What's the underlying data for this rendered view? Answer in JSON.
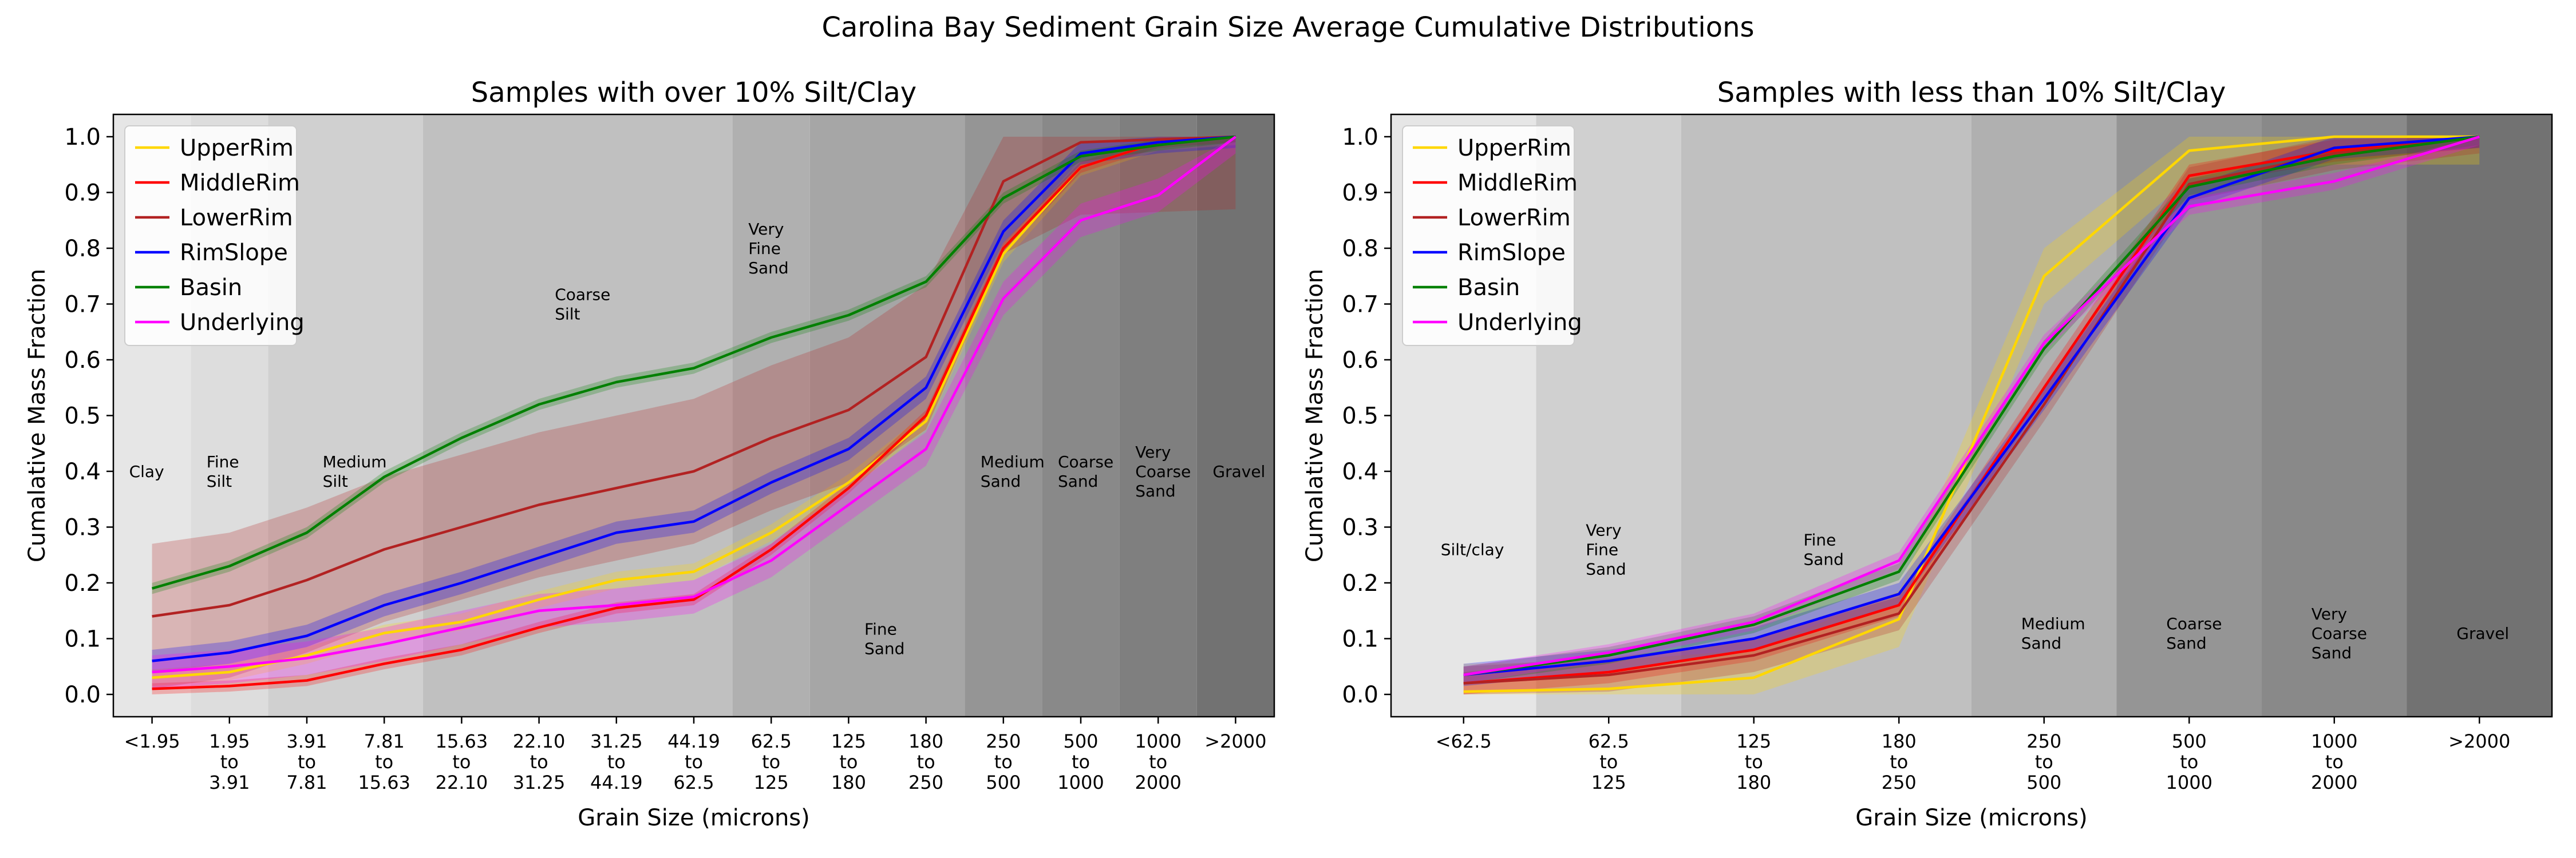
{
  "suptitle": "Carolina Bay Sediment Grain Size Average Cumulative Distributions",
  "colors": {
    "UpperRim": "#ffd700",
    "MiddleRim": "#ff0000",
    "LowerRim": "#b22222",
    "RimSlope": "#0000ff",
    "Basin": "#008000",
    "Underlying": "#ff00ff"
  },
  "chart_data": [
    {
      "type": "line",
      "title": "Samples with over 10% Silt/Clay",
      "xlabel": "Grain Size (microns)",
      "ylabel": "Cumalative Mass Fraction",
      "ylim": [
        -0.04,
        1.04
      ],
      "yticks": [
        "0.0",
        "0.1",
        "0.2",
        "0.3",
        "0.4",
        "0.5",
        "0.6",
        "0.7",
        "0.8",
        "0.9",
        "1.0"
      ],
      "categories": [
        "<1.95",
        "1.95\nto\n3.91",
        "3.91\nto\n7.81",
        "7.81\nto\n15.63",
        "15.63\nto\n22.10",
        "22.10\nto\n31.25",
        "31.25\nto\n44.19",
        "44.19\nto\n62.5",
        "62.5\nto\n125",
        "125\nto\n180",
        "180\nto\n250",
        "250\nto\n500",
        "500\nto\n1000",
        "1000\nto\n2000",
        ">2000"
      ],
      "legend_position": "upper-left",
      "bands": [
        {
          "label": "Clay",
          "from": -0.5,
          "to": 0.5,
          "shade": "#e6e6e6",
          "label_y": 0.4
        },
        {
          "label": "Fine\nSilt",
          "from": 0.5,
          "to": 1.5,
          "shade": "#dddddd",
          "label_y": 0.4
        },
        {
          "label": "Medium\nSilt",
          "from": 1.5,
          "to": 3.5,
          "shade": "#d0d0d0",
          "label_y": 0.4
        },
        {
          "label": "Coarse\nSilt",
          "from": 3.5,
          "to": 7.5,
          "shade": "#c0c0c0",
          "label_y": 0.7
        },
        {
          "label": "Very\nFine\nSand",
          "from": 7.5,
          "to": 8.5,
          "shade": "#b0b0b0",
          "label_y": 0.8
        },
        {
          "label": "Fine\nSand",
          "from": 8.5,
          "to": 10.5,
          "shade": "#a6a6a6",
          "label_y": 0.1
        },
        {
          "label": "Medium\nSand",
          "from": 10.5,
          "to": 11.5,
          "shade": "#959595",
          "label_y": 0.4
        },
        {
          "label": "Coarse\nSand",
          "from": 11.5,
          "to": 12.5,
          "shade": "#898989",
          "label_y": 0.4
        },
        {
          "label": "Very\nCoarse\nSand",
          "from": 12.5,
          "to": 13.5,
          "shade": "#7f7f7f",
          "label_y": 0.4
        },
        {
          "label": "Gravel",
          "from": 13.5,
          "to": 14.5,
          "shade": "#727272",
          "label_y": 0.4
        }
      ],
      "series": [
        {
          "name": "UpperRim",
          "values": [
            0.03,
            0.04,
            0.07,
            0.11,
            0.13,
            0.17,
            0.205,
            0.22,
            0.29,
            0.38,
            0.49,
            0.79,
            0.945,
            0.99,
            1.0
          ],
          "band": 0.015
        },
        {
          "name": "MiddleRim",
          "values": [
            0.01,
            0.015,
            0.025,
            0.055,
            0.08,
            0.12,
            0.155,
            0.17,
            0.26,
            0.37,
            0.5,
            0.8,
            0.945,
            0.99,
            1.0
          ],
          "band": 0.01
        },
        {
          "name": "LowerRim",
          "values": [
            0.14,
            0.16,
            0.205,
            0.26,
            0.3,
            0.34,
            0.37,
            0.4,
            0.46,
            0.51,
            0.605,
            0.92,
            0.99,
            0.995,
            1.0
          ],
          "band": 0.13
        },
        {
          "name": "RimSlope",
          "values": [
            0.06,
            0.075,
            0.105,
            0.16,
            0.2,
            0.245,
            0.29,
            0.31,
            0.38,
            0.44,
            0.55,
            0.83,
            0.97,
            0.99,
            1.0
          ],
          "band": 0.02
        },
        {
          "name": "Basin",
          "values": [
            0.19,
            0.23,
            0.29,
            0.39,
            0.46,
            0.52,
            0.56,
            0.585,
            0.64,
            0.68,
            0.74,
            0.89,
            0.965,
            0.985,
            1.0
          ],
          "band": 0.01
        },
        {
          "name": "Underlying",
          "values": [
            0.04,
            0.05,
            0.065,
            0.09,
            0.12,
            0.15,
            0.16,
            0.175,
            0.24,
            0.34,
            0.44,
            0.71,
            0.85,
            0.895,
            1.0
          ],
          "band": 0.03
        }
      ]
    },
    {
      "type": "line",
      "title": "Samples with less than 10% Silt/Clay",
      "xlabel": "Grain Size (microns)",
      "ylabel": "Cumalative Mass Fraction",
      "ylim": [
        -0.04,
        1.04
      ],
      "yticks": [
        "0.0",
        "0.1",
        "0.2",
        "0.3",
        "0.4",
        "0.5",
        "0.6",
        "0.7",
        "0.8",
        "0.9",
        "1.0"
      ],
      "categories": [
        "<62.5",
        "62.5\nto\n125",
        "125\nto\n180",
        "180\nto\n250",
        "250\nto\n500",
        "500\nto\n1000",
        "1000\nto\n2000",
        ">2000"
      ],
      "legend_position": "upper-left",
      "bands": [
        {
          "label": "Silt/clay",
          "from": -0.5,
          "to": 0.5,
          "shade": "#e6e6e6",
          "label_y": 0.26
        },
        {
          "label": "Very\nFine\nSand",
          "from": 0.5,
          "to": 1.5,
          "shade": "#d0d0d0",
          "label_y": 0.26
        },
        {
          "label": "Fine\nSand",
          "from": 1.5,
          "to": 3.5,
          "shade": "#c0c0c0",
          "label_y": 0.26
        },
        {
          "label": "Medium\nSand",
          "from": 3.5,
          "to": 4.5,
          "shade": "#b0b0b0",
          "label_y": 0.11
        },
        {
          "label": "Coarse\nSand",
          "from": 4.5,
          "to": 5.5,
          "shade": "#959595",
          "label_y": 0.11
        },
        {
          "label": "Very\nCoarse\nSand",
          "from": 5.5,
          "to": 6.5,
          "shade": "#898989",
          "label_y": 0.11
        },
        {
          "label": "Gravel",
          "from": 6.5,
          "to": 7.5,
          "shade": "#727272",
          "label_y": 0.11
        }
      ],
      "series": [
        {
          "name": "UpperRim",
          "values": [
            0.005,
            0.01,
            0.03,
            0.135,
            0.75,
            0.975,
            1.0,
            1.0
          ],
          "band": 0.05
        },
        {
          "name": "MiddleRim",
          "values": [
            0.02,
            0.04,
            0.08,
            0.16,
            0.55,
            0.93,
            0.975,
            1.0
          ],
          "band": 0.02
        },
        {
          "name": "LowerRim",
          "values": [
            0.02,
            0.035,
            0.07,
            0.145,
            0.52,
            0.915,
            0.97,
            1.0
          ],
          "band": 0.03
        },
        {
          "name": "RimSlope",
          "values": [
            0.035,
            0.06,
            0.1,
            0.18,
            0.53,
            0.89,
            0.98,
            1.0
          ],
          "band": 0.02
        },
        {
          "name": "Basin",
          "values": [
            0.035,
            0.07,
            0.125,
            0.22,
            0.62,
            0.91,
            0.965,
            1.0
          ],
          "band": 0.015
        },
        {
          "name": "Underlying",
          "values": [
            0.035,
            0.075,
            0.13,
            0.24,
            0.63,
            0.875,
            0.92,
            1.0
          ],
          "band": 0.015
        }
      ]
    }
  ]
}
